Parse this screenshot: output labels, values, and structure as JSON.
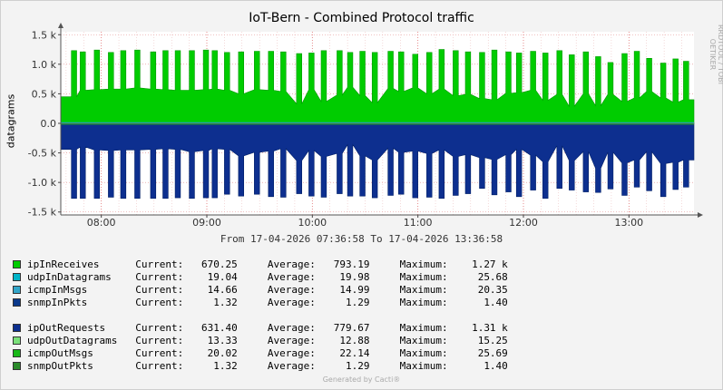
{
  "chart_data": {
    "type": "area",
    "title": "IoT-Bern - Combined Protocol traffic",
    "ylabel": "datagrams",
    "ylim": [
      -1550,
      1550
    ],
    "y_ticks": [
      {
        "value": 1500,
        "label": "1.5 k"
      },
      {
        "value": 1000,
        "label": "1.0 k"
      },
      {
        "value": 500,
        "label": "0.5 k"
      },
      {
        "value": 0,
        "label": "0.0"
      },
      {
        "value": -500,
        "label": "-0.5 k"
      },
      {
        "value": -1000,
        "label": "-1.0 k"
      },
      {
        "value": -1500,
        "label": "-1.5 k"
      }
    ],
    "x_ticks": [
      "08:00",
      "09:00",
      "10:00",
      "11:00",
      "12:00",
      "13:00"
    ],
    "grid": true,
    "time_range": {
      "start": "07:36:58",
      "end": "13:36:58"
    },
    "series": [
      {
        "name": "ipInReceives",
        "color": "#00cc00",
        "direction": "in",
        "peak_times": [
          "07:43",
          "07:48",
          "07:56",
          "08:04",
          "08:11",
          "08:19",
          "08:28",
          "08:35",
          "08:42",
          "08:50",
          "08:58",
          "09:03",
          "09:10",
          "09:18",
          "09:27",
          "09:35",
          "09:42",
          "09:51",
          "09:58",
          "10:05",
          "10:14",
          "10:20",
          "10:27",
          "10:34",
          "10:43",
          "10:49",
          "10:57",
          "11:05",
          "11:12",
          "11:20",
          "11:27",
          "11:35",
          "11:42",
          "11:50",
          "11:56",
          "12:04",
          "12:11",
          "12:19",
          "12:26",
          "12:34",
          "12:41",
          "12:48",
          "12:56",
          "13:03",
          "13:10",
          "13:18",
          "13:25",
          "13:31"
        ],
        "peak_values": [
          1230,
          1210,
          1240,
          1200,
          1230,
          1240,
          1210,
          1230,
          1230,
          1230,
          1240,
          1230,
          1200,
          1210,
          1220,
          1220,
          1210,
          1180,
          1190,
          1230,
          1230,
          1200,
          1220,
          1200,
          1220,
          1210,
          1170,
          1200,
          1250,
          1230,
          1210,
          1200,
          1240,
          1210,
          1190,
          1220,
          1190,
          1230,
          1160,
          1210,
          1130,
          1030,
          1180,
          1220,
          1100,
          1020,
          1090,
          1050
        ],
        "base_values": [
          450,
          560,
          570,
          580,
          580,
          600,
          580,
          570,
          560,
          560,
          570,
          580,
          560,
          500,
          570,
          560,
          540,
          330,
          570,
          370,
          480,
          610,
          470,
          350,
          590,
          540,
          600,
          500,
          580,
          470,
          490,
          420,
          400,
          510,
          520,
          560,
          390,
          490,
          290,
          500,
          300,
          490,
          370,
          430,
          540,
          430,
          360,
          400
        ],
        "current": "670.25",
        "average": "793.19",
        "maximum": "1.27 k"
      },
      {
        "name": "udpInDatagrams",
        "color": "#00b4c8",
        "direction": "in",
        "level": 19.98,
        "current": "19.04",
        "average": "19.98",
        "maximum": "25.68"
      },
      {
        "name": "icmpInMsgs",
        "color": "#33a6c9",
        "direction": "in",
        "level": 14.99,
        "current": "14.66",
        "average": "14.99",
        "maximum": "20.35"
      },
      {
        "name": "snmpInPkts",
        "color": "#0b3a8c",
        "direction": "in",
        "level": 1.29,
        "current": "1.32",
        "average": "1.29",
        "maximum": "1.40"
      },
      {
        "name": "ipOutRequests",
        "color": "#0d2f8f",
        "direction": "out",
        "trough_times": [
          "07:43",
          "07:48",
          "07:56",
          "08:04",
          "08:11",
          "08:19",
          "08:28",
          "08:35",
          "08:42",
          "08:50",
          "08:58",
          "09:03",
          "09:10",
          "09:18",
          "09:27",
          "09:35",
          "09:42",
          "09:51",
          "09:58",
          "10:05",
          "10:14",
          "10:20",
          "10:27",
          "10:34",
          "10:43",
          "10:49",
          "10:57",
          "11:05",
          "11:12",
          "11:20",
          "11:27",
          "11:35",
          "11:42",
          "11:50",
          "11:56",
          "12:04",
          "12:11",
          "12:19",
          "12:26",
          "12:34",
          "12:41",
          "12:48",
          "12:56",
          "13:03",
          "13:10",
          "13:18",
          "13:25",
          "13:31"
        ],
        "trough_values": [
          -1270,
          -1270,
          -1270,
          -1250,
          -1270,
          -1270,
          -1270,
          -1270,
          -1260,
          -1270,
          -1260,
          -1260,
          -1200,
          -1230,
          -1200,
          -1240,
          -1250,
          -1190,
          -1230,
          -1250,
          -1190,
          -1230,
          -1230,
          -1260,
          -1220,
          -1200,
          -1260,
          -1250,
          -1270,
          -1220,
          -1190,
          -1100,
          -1210,
          -1160,
          -1240,
          -1130,
          -1270,
          -1100,
          -1130,
          -1160,
          -1170,
          -1110,
          -1220,
          -1080,
          -1140,
          -1240,
          -1120,
          -1080
        ],
        "base_values": [
          -440,
          -400,
          -450,
          -460,
          -450,
          -450,
          -440,
          -430,
          -440,
          -480,
          -460,
          -430,
          -440,
          -550,
          -490,
          -470,
          -430,
          -630,
          -460,
          -560,
          -510,
          -360,
          -550,
          -620,
          -420,
          -490,
          -470,
          -510,
          -450,
          -560,
          -530,
          -580,
          -610,
          -530,
          -440,
          -540,
          -650,
          -380,
          -630,
          -480,
          -760,
          -490,
          -670,
          -620,
          -480,
          -680,
          -660,
          -620
        ],
        "current": "631.40",
        "average": "779.67",
        "maximum": "1.31 k"
      },
      {
        "name": "udpOutDatagrams",
        "color": "#7ae07a",
        "direction": "out",
        "level": -12.88,
        "current": "13.33",
        "average": "12.88",
        "maximum": "15.25"
      },
      {
        "name": "icmpOutMsgs",
        "color": "#18b818",
        "direction": "out",
        "level": -22.14,
        "current": "20.02",
        "average": "22.14",
        "maximum": "25.69"
      },
      {
        "name": "snmpOutPkts",
        "color": "#2a8a2a",
        "direction": "out",
        "level": -1.29,
        "current": "1.32",
        "average": "1.29",
        "maximum": "1.40"
      }
    ],
    "legend_labels": {
      "current": "Current:",
      "average": "Average:",
      "maximum": "Maximum:"
    }
  },
  "footer": {
    "range_text": "From 17-04-2026 07:36:58 To 17-04-2026 13:36:58",
    "generated_by": "Generated by Cacti®",
    "watermark": "RRDTOOL / TOBI OETIKER"
  }
}
